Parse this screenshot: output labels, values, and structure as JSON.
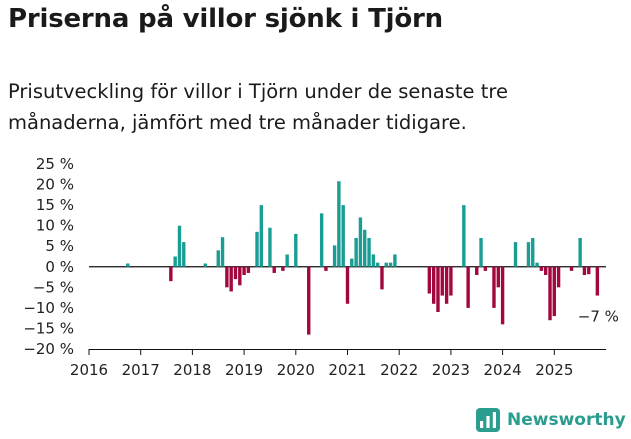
{
  "title": "Priserna på villor sjönk i Tjörn",
  "subtitle": "Prisutveckling för villor i Tjörn under de senaste tre månaderna, jämfört med tre månader tidigare.",
  "brand": "Newsworthy",
  "colors": {
    "positive": "#1a9e94",
    "negative": "#a3073f",
    "axis": "#111111",
    "text": "#222222"
  },
  "chart_data": {
    "type": "bar",
    "title": "Priserna på villor sjönk i Tjörn",
    "ylabel": "",
    "xlabel": "",
    "ylim": [
      -20,
      25
    ],
    "xlim": [
      2016,
      2026
    ],
    "y_ticks": [
      25,
      20,
      15,
      10,
      5,
      0,
      -5,
      -10,
      -15,
      -20
    ],
    "y_tick_labels": [
      "25 %",
      "20 %",
      "15 %",
      "10 %",
      "5 %",
      "0 %",
      "−5 %",
      "−10 %",
      "−15 %",
      "−20 %"
    ],
    "x_ticks": [
      2016,
      2017,
      2018,
      2019,
      2020,
      2021,
      2022,
      2023,
      2024,
      2025
    ],
    "x_tick_labels": [
      "2016",
      "2017",
      "2018",
      "2019",
      "2020",
      "2021",
      "2022",
      "2023",
      "2024",
      "2025"
    ],
    "end_label": "−7 %",
    "series": [
      {
        "name": "Prisutveckling",
        "points": [
          {
            "x": 2016.75,
            "y": 0.8
          },
          {
            "x": 2017.583,
            "y": -3.5
          },
          {
            "x": 2017.667,
            "y": 2.5
          },
          {
            "x": 2017.75,
            "y": 10
          },
          {
            "x": 2017.833,
            "y": 6
          },
          {
            "x": 2018.25,
            "y": 0.8
          },
          {
            "x": 2018.5,
            "y": 4
          },
          {
            "x": 2018.583,
            "y": 7.2
          },
          {
            "x": 2018.667,
            "y": -5
          },
          {
            "x": 2018.75,
            "y": -6
          },
          {
            "x": 2018.833,
            "y": -3
          },
          {
            "x": 2018.917,
            "y": -4.5
          },
          {
            "x": 2019.0,
            "y": -2
          },
          {
            "x": 2019.083,
            "y": -1.5
          },
          {
            "x": 2019.25,
            "y": 8.5
          },
          {
            "x": 2019.333,
            "y": 15
          },
          {
            "x": 2019.5,
            "y": 9.5
          },
          {
            "x": 2019.583,
            "y": -1.5
          },
          {
            "x": 2019.75,
            "y": -1
          },
          {
            "x": 2019.833,
            "y": 3
          },
          {
            "x": 2020.0,
            "y": 8
          },
          {
            "x": 2020.25,
            "y": -16.5
          },
          {
            "x": 2020.5,
            "y": 13
          },
          {
            "x": 2020.583,
            "y": -1
          },
          {
            "x": 2020.75,
            "y": 5.2
          },
          {
            "x": 2020.833,
            "y": 20.8
          },
          {
            "x": 2020.917,
            "y": 15
          },
          {
            "x": 2021.0,
            "y": -9
          },
          {
            "x": 2021.083,
            "y": 2
          },
          {
            "x": 2021.167,
            "y": 7
          },
          {
            "x": 2021.25,
            "y": 12
          },
          {
            "x": 2021.333,
            "y": 9
          },
          {
            "x": 2021.417,
            "y": 7
          },
          {
            "x": 2021.5,
            "y": 3
          },
          {
            "x": 2021.583,
            "y": 1
          },
          {
            "x": 2021.667,
            "y": -5.5
          },
          {
            "x": 2021.75,
            "y": 1
          },
          {
            "x": 2021.833,
            "y": 1
          },
          {
            "x": 2021.917,
            "y": 3
          },
          {
            "x": 2022.583,
            "y": -6.5
          },
          {
            "x": 2022.667,
            "y": -9
          },
          {
            "x": 2022.75,
            "y": -11
          },
          {
            "x": 2022.833,
            "y": -7
          },
          {
            "x": 2022.917,
            "y": -9
          },
          {
            "x": 2023.0,
            "y": -7
          },
          {
            "x": 2023.25,
            "y": 15
          },
          {
            "x": 2023.333,
            "y": -10
          },
          {
            "x": 2023.5,
            "y": -2
          },
          {
            "x": 2023.583,
            "y": 7
          },
          {
            "x": 2023.667,
            "y": -1
          },
          {
            "x": 2023.833,
            "y": -10
          },
          {
            "x": 2023.917,
            "y": -5
          },
          {
            "x": 2024.0,
            "y": -14
          },
          {
            "x": 2024.25,
            "y": 6
          },
          {
            "x": 2024.5,
            "y": 6
          },
          {
            "x": 2024.583,
            "y": 7
          },
          {
            "x": 2024.667,
            "y": 1
          },
          {
            "x": 2024.75,
            "y": -1
          },
          {
            "x": 2024.833,
            "y": -2
          },
          {
            "x": 2024.917,
            "y": -13
          },
          {
            "x": 2025.0,
            "y": -12
          },
          {
            "x": 2025.083,
            "y": -5
          },
          {
            "x": 2025.333,
            "y": -1
          },
          {
            "x": 2025.5,
            "y": 7
          },
          {
            "x": 2025.583,
            "y": -2
          },
          {
            "x": 2025.667,
            "y": -1.8
          },
          {
            "x": 2025.833,
            "y": -7
          }
        ]
      }
    ]
  }
}
